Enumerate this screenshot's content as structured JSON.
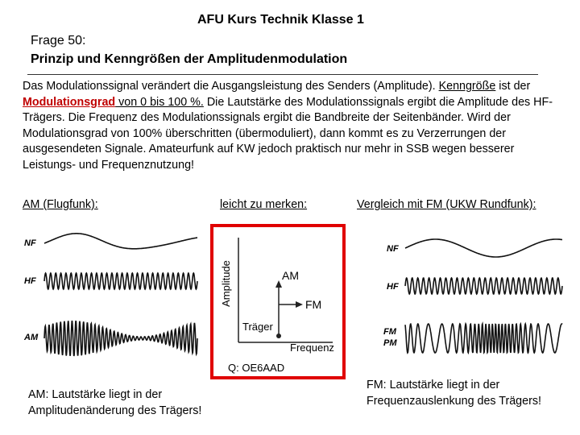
{
  "header": {
    "title": "AFU Kurs Technik Klasse 1"
  },
  "question": {
    "number": "Frage 50:",
    "title": "Prinzip und Kenngrößen der Amplitudenmodulation"
  },
  "body": {
    "segments": [
      "Das Modulationssignal verändert die Ausgangsleistung des Senders (Amplitude). ",
      "Kenngröße",
      " ist der ",
      "Modulationsgrad",
      " von 0 bis 100 %.",
      " Die Lautstärke des Modulationssignals ergibt die Amplitude des HF-Trägers. Die Frequenz des Modulationssignals ergibt die Bandbreite der Seitenbänder. Wird der Modulationsgrad von 100% überschritten (übermoduliert), dann kommt es zu Verzerrungen der ausgesendeten Signale. Amateurfunk auf KW jedoch praktisch nur mehr in SSB wegen besserer Leistungs- und Frequenznutzung!"
    ]
  },
  "columns": {
    "left": "AM (Flugfunk):",
    "middle": "leicht zu merken:",
    "right": "Vergleich mit FM (UKW Rundfunk):"
  },
  "left_figure": {
    "labels": [
      "NF",
      "HF",
      "AM"
    ]
  },
  "middle_figure": {
    "y_axis": "Amplitude",
    "x_axis": "Frequenz",
    "am": "AM",
    "fm": "FM",
    "carrier": "Träger",
    "source": "Q: OE6AAD"
  },
  "right_figure": {
    "labels": [
      "NF",
      "HF",
      "FM",
      "PM"
    ]
  },
  "captions": {
    "left": [
      "AM: Lautstärke liegt in der",
      "Amplitudenänderung des Trägers!"
    ],
    "right": [
      "FM: Lautstärke liegt in der",
      "Frequenzauslenkung des Trägers!"
    ]
  }
}
